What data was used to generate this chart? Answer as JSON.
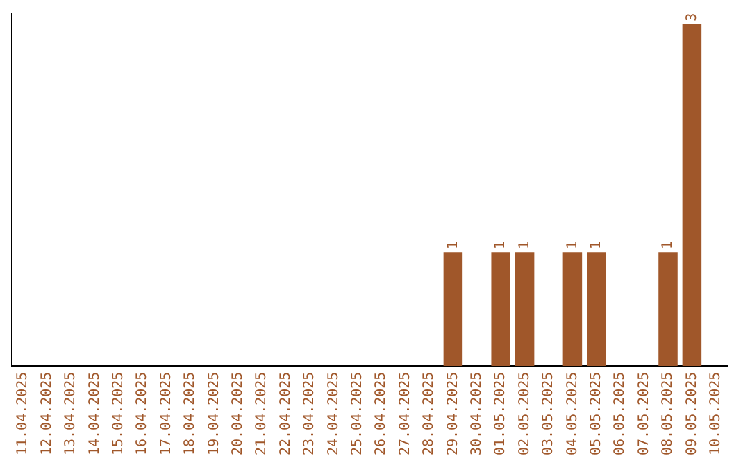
{
  "chart_data": {
    "type": "bar",
    "categories": [
      "11.04.2025",
      "12.04.2025",
      "13.04.2025",
      "14.04.2025",
      "15.04.2025",
      "16.04.2025",
      "17.04.2025",
      "18.04.2025",
      "19.04.2025",
      "20.04.2025",
      "21.04.2025",
      "22.04.2025",
      "23.04.2025",
      "24.04.2025",
      "25.04.2025",
      "26.04.2025",
      "27.04.2025",
      "28.04.2025",
      "29.04.2025",
      "30.04.2025",
      "01.05.2025",
      "02.05.2025",
      "03.05.2025",
      "04.05.2025",
      "05.05.2025",
      "06.05.2025",
      "07.05.2025",
      "08.05.2025",
      "09.05.2025",
      "10.05.2025"
    ],
    "values": [
      null,
      null,
      null,
      null,
      null,
      null,
      null,
      null,
      null,
      null,
      null,
      null,
      null,
      null,
      null,
      null,
      null,
      null,
      1,
      null,
      1,
      1,
      null,
      1,
      1,
      null,
      null,
      1,
      3,
      null
    ],
    "data_labels": true,
    "color": "#a0572a",
    "grid": false,
    "legend": false,
    "tick_labels": "x"
  }
}
